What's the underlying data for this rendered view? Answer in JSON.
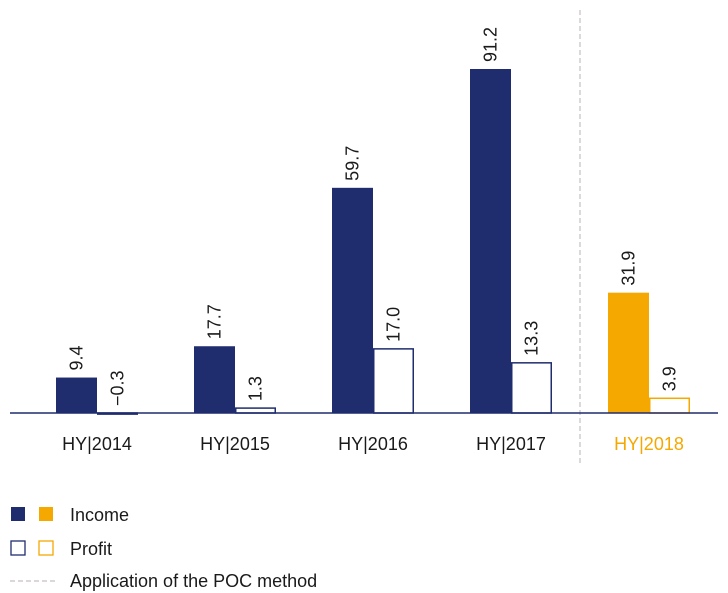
{
  "chart_data": {
    "type": "bar",
    "categories": [
      "HY|2014",
      "HY|2015",
      "HY|2016",
      "HY|2017",
      "HY|2018"
    ],
    "category_colors": [
      "#1a1a1a",
      "#1a1a1a",
      "#1a1a1a",
      "#1a1a1a",
      "#f5a800"
    ],
    "series": [
      {
        "name": "Income",
        "style": "filled",
        "colors": [
          "#1f2d6e",
          "#1f2d6e",
          "#1f2d6e",
          "#1f2d6e",
          "#f5a800"
        ],
        "values": [
          9.4,
          17.7,
          59.7,
          91.2,
          31.9
        ]
      },
      {
        "name": "Profit",
        "style": "outline",
        "colors": [
          "#1f2d6e",
          "#1f2d6e",
          "#1f2d6e",
          "#1f2d6e",
          "#f5a800"
        ],
        "values": [
          -0.3,
          1.3,
          17.0,
          13.3,
          3.9
        ],
        "value_labels": [
          "−0.3",
          "1.3",
          "17.0",
          "13.3",
          "3.9"
        ]
      }
    ],
    "divider": {
      "label": "Application of the POC method",
      "before_index": 4,
      "color": "#c8c0c0"
    }
  }
}
